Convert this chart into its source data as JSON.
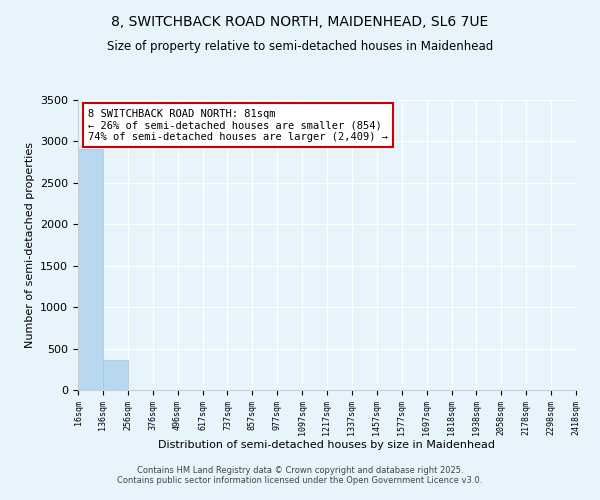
{
  "title": "8, SWITCHBACK ROAD NORTH, MAIDENHEAD, SL6 7UE",
  "subtitle": "Size of property relative to semi-detached houses in Maidenhead",
  "xlabel": "Distribution of semi-detached houses by size in Maidenhead",
  "ylabel": "Number of semi-detached properties",
  "property_size": 81,
  "annotation_line1": "8 SWITCHBACK ROAD NORTH: 81sqm",
  "annotation_line2": "← 26% of semi-detached houses are smaller (854)",
  "annotation_line3": "74% of semi-detached houses are larger (2,409) →",
  "bin_edges": [
    16,
    136,
    256,
    376,
    496,
    617,
    737,
    857,
    977,
    1097,
    1217,
    1337,
    1457,
    1577,
    1697,
    1818,
    1938,
    2058,
    2178,
    2298,
    2418
  ],
  "bar_heights": [
    2909,
    360,
    0,
    0,
    0,
    0,
    0,
    0,
    0,
    0,
    0,
    0,
    0,
    0,
    0,
    0,
    0,
    0,
    0,
    0
  ],
  "bar_color": "#b8d8f0",
  "bar_edge_color": "#a0c8e8",
  "annotation_box_facecolor": "#ffffff",
  "annotation_box_edgecolor": "#cc0000",
  "ylim": [
    0,
    3500
  ],
  "yticks": [
    0,
    500,
    1000,
    1500,
    2000,
    2500,
    3000,
    3500
  ],
  "background_color": "#e8f4fc",
  "grid_color": "#ffffff",
  "footer_line1": "Contains HM Land Registry data © Crown copyright and database right 2025.",
  "footer_line2": "Contains public sector information licensed under the Open Government Licence v3.0."
}
